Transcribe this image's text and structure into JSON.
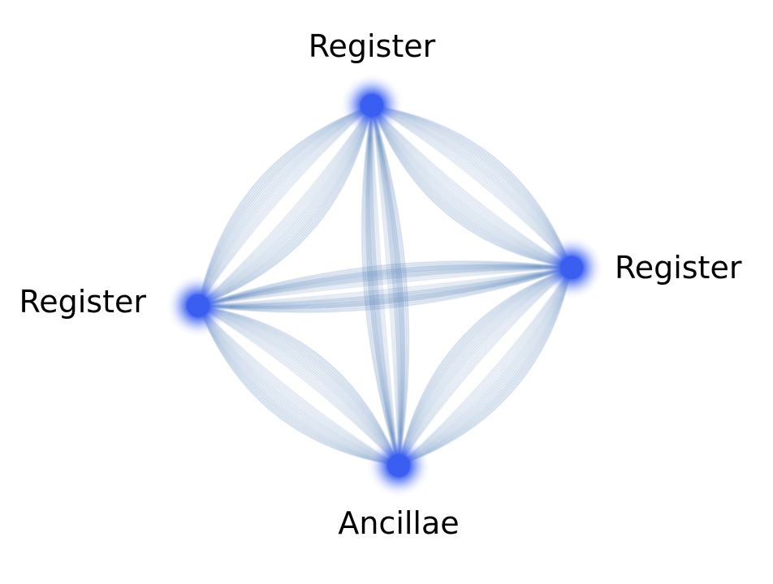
{
  "diagram": {
    "nodes": [
      {
        "id": "top",
        "label": "Register",
        "role": "register"
      },
      {
        "id": "right",
        "label": "Register",
        "role": "register"
      },
      {
        "id": "left",
        "label": "Register",
        "role": "register"
      },
      {
        "id": "bottom",
        "label": "Ancillae",
        "role": "ancillae"
      }
    ],
    "edges": [
      [
        "top",
        "left"
      ],
      [
        "top",
        "right"
      ],
      [
        "left",
        "bottom"
      ],
      [
        "right",
        "bottom"
      ],
      [
        "top",
        "bottom"
      ],
      [
        "left",
        "right"
      ]
    ],
    "strands_per_edge": 5,
    "colors": {
      "node": "#3a5ef0",
      "node_glow": "#8fa6ff",
      "strand": "#3f6fae",
      "label": "#000000",
      "background": "#ffffff"
    }
  }
}
